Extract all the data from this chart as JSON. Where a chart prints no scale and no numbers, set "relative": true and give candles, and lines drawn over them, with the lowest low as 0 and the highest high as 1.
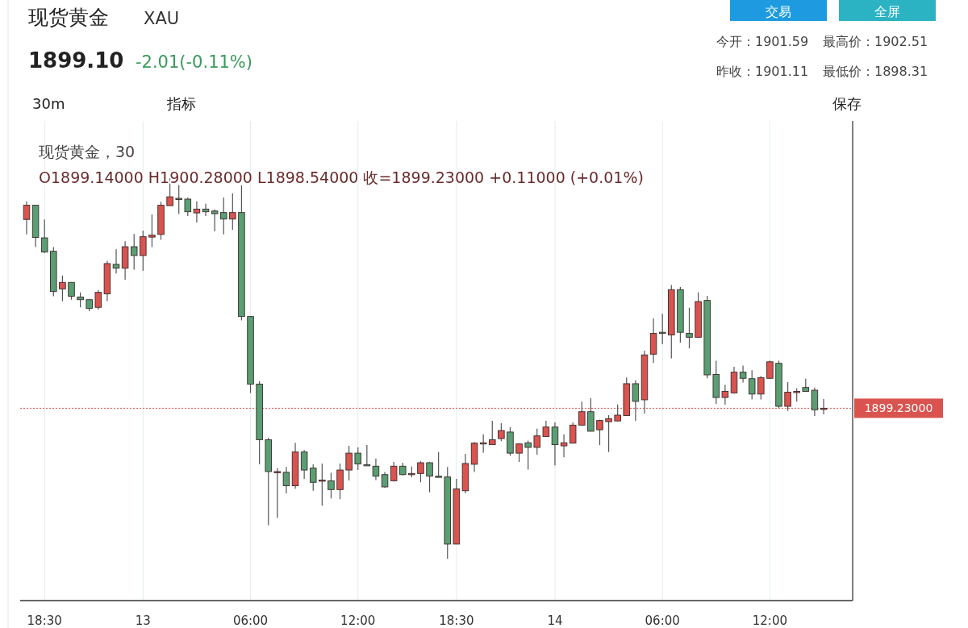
{
  "chart_data": {
    "type": "candlestick",
    "title": "现货黄金",
    "subtitle": "XAU",
    "annotations": [
      "1899.10",
      "-2.01(-0.11%)",
      "今开：1901.59",
      "最高价：1902.51",
      "昨收：1901.11",
      "最低价：1898.31",
      "交易",
      "全屏",
      "30m",
      "指标",
      "保存",
      "现货黄金，30",
      "O1899.14000  H1900.28000  L1898.54000  收=1899.23000  +0.11000 (+0.01%)",
      "1899.23000"
    ],
    "relative": true,
    "grid": "x",
    "ref_lines": [
      {
        "axis": "y",
        "value": 0.392,
        "color": "#d9534f",
        "line_style": "dotted"
      }
    ],
    "categories": [
      null,
      null,
      "18:30",
      null,
      null,
      null,
      null,
      null,
      null,
      null,
      null,
      null,
      null,
      "13",
      null,
      null,
      null,
      null,
      null,
      null,
      null,
      null,
      null,
      null,
      null,
      "06:00",
      null,
      null,
      null,
      null,
      null,
      null,
      null,
      null,
      null,
      null,
      null,
      "12:00",
      null,
      null,
      null,
      null,
      null,
      null,
      null,
      null,
      null,
      null,
      "18:30",
      null,
      null,
      null,
      null,
      null,
      null,
      null,
      null,
      null,
      null,
      "14",
      null,
      null,
      null,
      null,
      null,
      null,
      null,
      null,
      null,
      null,
      null,
      "06:00",
      null,
      null,
      null,
      null,
      null,
      null,
      null,
      null,
      null,
      null,
      null,
      "12:00",
      null,
      null,
      null,
      null,
      null,
      null
    ],
    "ohlc": [
      [
        0.884,
        0.931,
        0.845,
        0.921
      ],
      [
        0.921,
        0.921,
        0.812,
        0.837
      ],
      [
        0.836,
        0.884,
        0.797,
        0.799
      ],
      [
        0.801,
        0.812,
        0.684,
        0.696
      ],
      [
        0.703,
        0.738,
        0.671,
        0.72
      ],
      [
        0.72,
        0.72,
        0.675,
        0.684
      ],
      [
        0.682,
        0.694,
        0.655,
        0.675
      ],
      [
        0.675,
        0.675,
        0.645,
        0.652
      ],
      [
        0.655,
        0.7,
        0.649,
        0.694
      ],
      [
        0.69,
        0.776,
        0.671,
        0.769
      ],
      [
        0.767,
        0.806,
        0.743,
        0.757
      ],
      [
        0.757,
        0.827,
        0.727,
        0.813
      ],
      [
        0.813,
        0.846,
        0.753,
        0.79
      ],
      [
        0.79,
        0.855,
        0.75,
        0.839
      ],
      [
        0.838,
        0.897,
        0.812,
        0.843
      ],
      [
        0.845,
        0.93,
        0.831,
        0.921
      ],
      [
        0.92,
        1,
        0.92,
        0.943
      ],
      [
        0.939,
        0.974,
        0.898,
        0.938
      ],
      [
        0.937,
        0.941,
        0.893,
        0.904
      ],
      [
        0.901,
        0.931,
        0.876,
        0.911
      ],
      [
        0.911,
        0.925,
        0.893,
        0.904
      ],
      [
        0.906,
        0.91,
        0.853,
        0.899
      ],
      [
        0.902,
        0.941,
        0.845,
        0.885
      ],
      [
        0.885,
        0.952,
        0.857,
        0.902
      ],
      [
        0.902,
        0.973,
        0.621,
        0.631
      ],
      [
        0.631,
        0.631,
        0.432,
        0.455
      ],
      [
        0.455,
        0.462,
        0.246,
        0.31
      ],
      [
        0.31,
        0.315,
        0.087,
        0.227
      ],
      [
        0.225,
        0.236,
        0.106,
        0.227
      ],
      [
        0.225,
        0.239,
        0.17,
        0.19
      ],
      [
        0.19,
        0.302,
        0.182,
        0.278
      ],
      [
        0.278,
        0.283,
        0.208,
        0.231
      ],
      [
        0.236,
        0.246,
        0.177,
        0.199
      ],
      [
        0.203,
        0.248,
        0.138,
        0.205
      ],
      [
        0.203,
        0.224,
        0.157,
        0.18
      ],
      [
        0.18,
        0.248,
        0.155,
        0.231
      ],
      [
        0.231,
        0.294,
        0.204,
        0.275
      ],
      [
        0.275,
        0.29,
        0.231,
        0.247
      ],
      [
        0.245,
        0.296,
        0.243,
        0.244
      ],
      [
        0.241,
        0.261,
        0.205,
        0.215
      ],
      [
        0.219,
        0.226,
        0.185,
        0.187
      ],
      [
        0.203,
        0.252,
        0.201,
        0.241
      ],
      [
        0.241,
        0.25,
        0.217,
        0.219
      ],
      [
        0.221,
        0.24,
        0.212,
        0.222
      ],
      [
        0.222,
        0.254,
        0.199,
        0.25
      ],
      [
        0.25,
        0.252,
        0.173,
        0.215
      ],
      [
        0.215,
        0.278,
        0.212,
        0.214
      ],
      [
        0.213,
        0.239,
        0,
        0.038
      ],
      [
        0.038,
        0.208,
        0.038,
        0.182
      ],
      [
        0.177,
        0.273,
        0.17,
        0.248
      ],
      [
        0.246,
        0.304,
        0.226,
        0.301
      ],
      [
        0.3,
        0.324,
        0.276,
        0.302
      ],
      [
        0.297,
        0.359,
        0.297,
        0.31
      ],
      [
        0.313,
        0.353,
        0.306,
        0.334
      ],
      [
        0.33,
        0.343,
        0.268,
        0.275
      ],
      [
        0.275,
        0.301,
        0.252,
        0.299
      ],
      [
        0.302,
        0.308,
        0.232,
        0.29
      ],
      [
        0.29,
        0.339,
        0.271,
        0.32
      ],
      [
        0.318,
        0.359,
        0.318,
        0.343
      ],
      [
        0.343,
        0.355,
        0.243,
        0.297
      ],
      [
        0.294,
        0.324,
        0.264,
        0.302
      ],
      [
        0.301,
        0.355,
        0.301,
        0.348
      ],
      [
        0.348,
        0.409,
        0.348,
        0.383
      ],
      [
        0.383,
        0.418,
        0.332,
        0.332
      ],
      [
        0.336,
        0.362,
        0.296,
        0.36
      ],
      [
        0.357,
        0.374,
        0.278,
        0.365
      ],
      [
        0.359,
        0.402,
        0.357,
        0.374
      ],
      [
        0.373,
        0.472,
        0.373,
        0.456
      ],
      [
        0.456,
        0.465,
        0.359,
        0.41
      ],
      [
        0.414,
        0.542,
        0.378,
        0.531
      ],
      [
        0.533,
        0.626,
        0.51,
        0.587
      ],
      [
        0.59,
        0.638,
        0.559,
        0.589
      ],
      [
        0.583,
        0.713,
        0.522,
        0.701
      ],
      [
        0.701,
        0.708,
        0.563,
        0.59
      ],
      [
        0.587,
        0.654,
        0.548,
        0.577
      ],
      [
        0.577,
        0.694,
        0.577,
        0.67
      ],
      [
        0.673,
        0.685,
        0.47,
        0.479
      ],
      [
        0.48,
        0.516,
        0.403,
        0.42
      ],
      [
        0.42,
        0.453,
        0.401,
        0.436
      ],
      [
        0.432,
        0.5,
        0.43,
        0.486
      ],
      [
        0.486,
        0.503,
        0.459,
        0.47
      ],
      [
        0.469,
        0.491,
        0.415,
        0.429
      ],
      [
        0.429,
        0.476,
        0.415,
        0.472
      ],
      [
        0.47,
        0.516,
        0.47,
        0.513
      ],
      [
        0.509,
        0.516,
        0.392,
        0.397
      ],
      [
        0.397,
        0.46,
        0.385,
        0.434
      ],
      [
        0.434,
        0.444,
        0.409,
        0.436
      ],
      [
        0.446,
        0.469,
        0.436,
        0.436
      ],
      [
        0.439,
        0.446,
        0.372,
        0.388
      ],
      [
        0.39,
        0.416,
        0.376,
        0.392
      ]
    ],
    "colors": [
      "#d9534f",
      "#5a9e73",
      "#5a9e73",
      "#5a9e73",
      "#d9534f",
      "#5a9e73",
      "#5a9e73",
      "#5a9e73",
      "#d9534f",
      "#d9534f",
      "#5a9e73",
      "#d9534f",
      "#5a9e73",
      "#d9534f",
      "#d9534f",
      "#d9534f",
      "#d9534f",
      "#5a9e73",
      "#5a9e73",
      "#d9534f",
      "#5a9e73",
      "#5a9e73",
      "#5a9e73",
      "#d9534f",
      "#5a9e73",
      "#5a9e73",
      "#5a9e73",
      "#5a9e73",
      "#d9534f",
      "#5a9e73",
      "#d9534f",
      "#5a9e73",
      "#5a9e73",
      "#d9534f",
      "#5a9e73",
      "#d9534f",
      "#d9534f",
      "#5a9e73",
      "#5a9e73",
      "#5a9e73",
      "#5a9e73",
      "#d9534f",
      "#5a9e73",
      "#d9534f",
      "#d9534f",
      "#5a9e73",
      "#5a9e73",
      "#5a9e73",
      "#d9534f",
      "#d9534f",
      "#d9534f",
      "#d9534f",
      "#d9534f",
      "#d9534f",
      "#5a9e73",
      "#d9534f",
      "#5a9e73",
      "#d9534f",
      "#d9534f",
      "#5a9e73",
      "#d9534f",
      "#d9534f",
      "#d9534f",
      "#5a9e73",
      "#d9534f",
      "#d9534f",
      "#d9534f",
      "#d9534f",
      "#5a9e73",
      "#d9534f",
      "#d9534f",
      "#5a9e73",
      "#d9534f",
      "#5a9e73",
      "#5a9e73",
      "#d9534f",
      "#5a9e73",
      "#5a9e73",
      "#d9534f",
      "#d9534f",
      "#5a9e73",
      "#5a9e73",
      "#d9534f",
      "#d9534f",
      "#5a9e73",
      "#d9534f",
      "#d9534f",
      "#5a9e73",
      "#5a9e73",
      "#d9534f"
    ]
  }
}
